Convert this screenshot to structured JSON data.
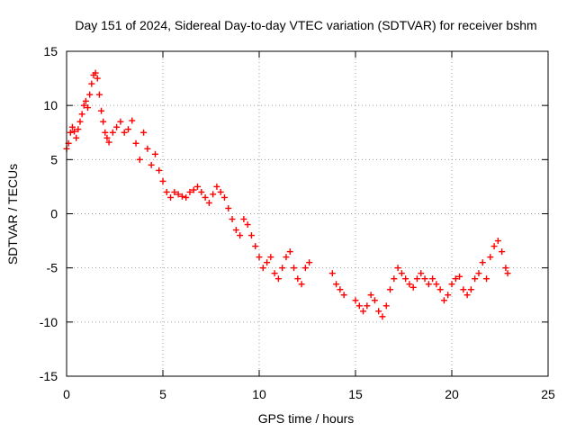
{
  "chart_data": {
    "type": "scatter",
    "title": "Day 151 of 2024, Sidereal Day-to-day VTEC variation (SDTVAR) for receiver bshm",
    "xlabel": "GPS time / hours",
    "ylabel": "SDTVAR / TECUs",
    "xlim": [
      0,
      25
    ],
    "ylim": [
      -15,
      15
    ],
    "xticks": [
      "0",
      "5",
      "10",
      "15",
      "20",
      "25"
    ],
    "yticks": [
      "-15",
      "-10",
      "-5",
      "0",
      "5",
      "10",
      "15"
    ],
    "grid": true,
    "marker": "+",
    "colors": {
      "series": "#ff0000",
      "grid": "#a0a0a0",
      "axes": "#000000"
    },
    "series": [
      {
        "name": "SDTVAR",
        "x": [
          0.0,
          0.1,
          0.2,
          0.3,
          0.4,
          0.5,
          0.6,
          0.7,
          0.8,
          0.9,
          1.0,
          1.1,
          1.2,
          1.3,
          1.4,
          1.5,
          1.6,
          1.7,
          1.8,
          1.9,
          2.0,
          2.1,
          2.2,
          2.4,
          2.6,
          2.8,
          3.0,
          3.2,
          3.4,
          3.6,
          3.8,
          4.0,
          4.2,
          4.4,
          4.6,
          4.8,
          5.0,
          5.2,
          5.4,
          5.6,
          5.8,
          6.0,
          6.2,
          6.4,
          6.6,
          6.8,
          7.0,
          7.2,
          7.4,
          7.6,
          7.8,
          8.0,
          8.2,
          8.4,
          8.6,
          8.8,
          9.0,
          9.2,
          9.4,
          9.6,
          9.8,
          10.0,
          10.2,
          10.4,
          10.6,
          10.8,
          11.0,
          11.2,
          11.4,
          11.6,
          11.8,
          12.0,
          12.2,
          12.4,
          12.6,
          13.8,
          14.0,
          14.2,
          14.4,
          15.0,
          15.2,
          15.4,
          15.6,
          15.8,
          16.0,
          16.2,
          16.4,
          16.6,
          16.8,
          17.0,
          17.2,
          17.4,
          17.6,
          17.8,
          18.0,
          18.2,
          18.4,
          18.6,
          18.8,
          19.0,
          19.2,
          19.4,
          19.6,
          19.8,
          20.0,
          20.2,
          20.4,
          20.6,
          20.8,
          21.0,
          21.2,
          21.4,
          21.6,
          21.8,
          22.0,
          22.2,
          22.4,
          22.6,
          22.8,
          22.9
        ],
        "y": [
          6.0,
          6.5,
          7.5,
          8.0,
          7.6,
          7.0,
          7.8,
          8.5,
          9.2,
          10.0,
          10.4,
          9.8,
          11.0,
          12.0,
          12.8,
          13.0,
          12.5,
          11.0,
          9.5,
          8.5,
          7.5,
          7.0,
          6.6,
          7.5,
          8.0,
          8.5,
          7.5,
          7.8,
          8.6,
          6.5,
          5.0,
          7.5,
          6.0,
          4.5,
          5.5,
          4.0,
          3.0,
          2.0,
          1.5,
          2.0,
          1.8,
          1.6,
          1.5,
          2.0,
          2.2,
          2.5,
          2.0,
          1.5,
          1.0,
          1.8,
          2.5,
          2.0,
          1.5,
          0.5,
          -0.5,
          -1.5,
          -2.0,
          -0.5,
          -1.0,
          -2.0,
          -3.0,
          -4.0,
          -5.0,
          -4.5,
          -4.0,
          -5.5,
          -6.0,
          -5.0,
          -4.0,
          -3.5,
          -5.0,
          -6.0,
          -6.5,
          -5.0,
          -4.5,
          -5.5,
          -6.5,
          -7.0,
          -7.5,
          -8.0,
          -8.5,
          -9.0,
          -8.5,
          -7.5,
          -8.0,
          -9.0,
          -9.5,
          -8.5,
          -7.0,
          -6.0,
          -5.0,
          -5.5,
          -6.0,
          -6.5,
          -6.8,
          -6.0,
          -5.5,
          -6.0,
          -6.5,
          -6.0,
          -6.5,
          -7.0,
          -8.0,
          -7.5,
          -6.5,
          -6.0,
          -5.8,
          -7.0,
          -7.5,
          -7.0,
          -6.0,
          -5.5,
          -4.5,
          -6.0,
          -4.0,
          -3.0,
          -2.5,
          -3.5,
          -5.0,
          -5.5
        ]
      }
    ]
  }
}
